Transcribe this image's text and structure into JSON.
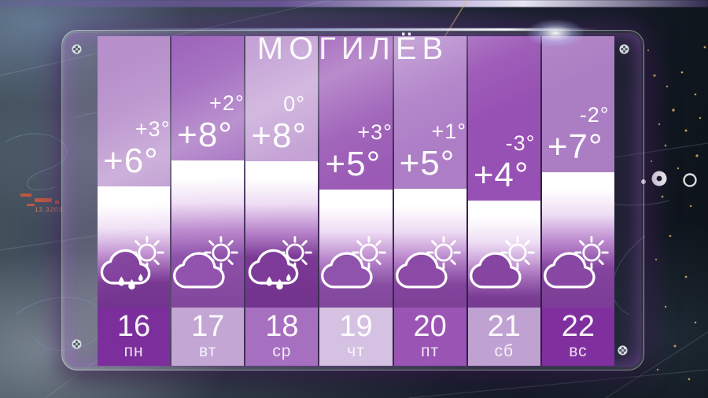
{
  "title": "МОГИЛЁВ",
  "chart_data": {
    "type": "bar",
    "title": "МОГИЛЁВ",
    "categories": [
      "16 пн",
      "17 вт",
      "18 ср",
      "19 чт",
      "20 пт",
      "21 сб",
      "22 вс"
    ],
    "series": [
      {
        "name": "day_temp_c",
        "values": [
          6,
          8,
          8,
          5,
          5,
          4,
          7
        ]
      },
      {
        "name": "night_temp_c",
        "values": [
          3,
          2,
          0,
          3,
          1,
          -3,
          -2
        ]
      }
    ],
    "conditions": [
      "rain-sun",
      "cloud-sun",
      "rain-sun",
      "cloud-sun",
      "cloud-sun",
      "cloud-sun",
      "cloud-sun"
    ],
    "legend": "none",
    "grid": false
  },
  "forecast": {
    "days": [
      {
        "date": "16",
        "weekday": "пн",
        "temp_day": "+6°",
        "temp_night": "+3°",
        "condition": "rain-sun",
        "colors": {
          "top": "#b78fcb",
          "mid": "#7f3d9b",
          "day": "#7c2f9c"
        },
        "bar_top": 236
      },
      {
        "date": "17",
        "weekday": "вт",
        "temp_day": "+8°",
        "temp_night": "+2°",
        "condition": "cloud-sun",
        "colors": {
          "top": "#9d63bb",
          "mid": "#9153ad",
          "day": "#c4a6d5"
        },
        "bar_top": 203
      },
      {
        "date": "18",
        "weekday": "ср",
        "temp_day": "+8°",
        "temp_night": "0°",
        "condition": "rain-sun",
        "colors": {
          "top": "#c09bd2",
          "mid": "#7e3b99",
          "day": "#a76fc0"
        },
        "bar_top": 204
      },
      {
        "date": "19",
        "weekday": "чт",
        "temp_day": "+5°",
        "temp_night": "+3°",
        "condition": "cloud-sun",
        "colors": {
          "top": "#9a5ab5",
          "mid": "#9053ac",
          "day": "#d5c2e2"
        },
        "bar_top": 240
      },
      {
        "date": "20",
        "weekday": "пт",
        "temp_day": "+5°",
        "temp_night": "+1°",
        "condition": "cloud-sun",
        "colors": {
          "top": "#ad7dc6",
          "mid": "#8b4aa6",
          "day": "#9a55b4"
        },
        "bar_top": 239
      },
      {
        "date": "21",
        "weekday": "сб",
        "temp_day": "+4°",
        "temp_night": "-3°",
        "condition": "cloud-sun",
        "colors": {
          "top": "#9750b3",
          "mid": "#8545a1",
          "day": "#bfa2d2"
        },
        "bar_top": 254
      },
      {
        "date": "22",
        "weekday": "вс",
        "temp_day": "+7°",
        "temp_night": "-2°",
        "condition": "cloud-sun",
        "colors": {
          "top": "#ab7ec3",
          "mid": "#8947a4",
          "day": "#802f9f"
        },
        "bar_top": 218
      }
    ]
  },
  "background": {
    "map_label": "13.3203",
    "accent_purple": "#8c3cbe",
    "light_dot_color": "#d9b36a"
  }
}
